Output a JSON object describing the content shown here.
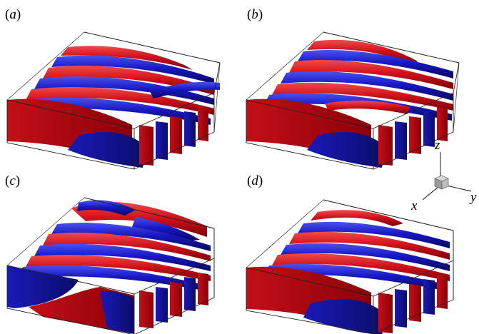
{
  "panels": [
    {
      "id": "a",
      "label_open": "(",
      "label_letter": "a",
      "label_close": ")"
    },
    {
      "id": "b",
      "label_open": "(",
      "label_letter": "b",
      "label_close": ")"
    },
    {
      "id": "c",
      "label_open": "(",
      "label_letter": "c",
      "label_close": ")"
    },
    {
      "id": "d",
      "label_open": "(",
      "label_letter": "d",
      "label_close": ")"
    }
  ],
  "axes": {
    "z": "z",
    "x": "x",
    "y": "y"
  },
  "colors": {
    "positive": "#d1121b",
    "negative": "#1717c4",
    "box": "#333333",
    "cube": "#b5b5b5"
  }
}
